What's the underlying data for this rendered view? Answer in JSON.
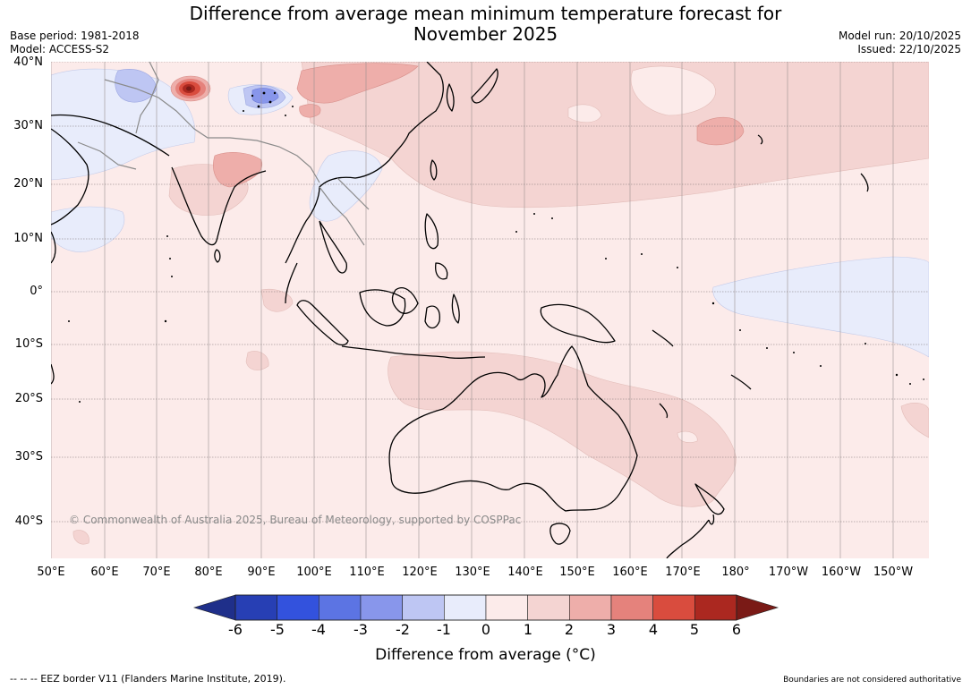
{
  "title_line1": "Difference from average mean minimum temperature forecast for",
  "title_line2": "November 2025",
  "base_period": "Base period: 1981-2018",
  "model": "Model: ACCESS-S2",
  "model_run": "Model run: 20/10/2025",
  "issued": "Issued: 22/10/2025",
  "latitude_labels": [
    "40°N",
    "30°N",
    "20°N",
    "10°N",
    "0°",
    "10°S",
    "20°S",
    "30°S",
    "40°S"
  ],
  "longitude_labels": [
    "50°E",
    "60°E",
    "70°E",
    "80°E",
    "90°E",
    "100°E",
    "110°E",
    "120°E",
    "130°E",
    "140°E",
    "150°E",
    "160°E",
    "170°E",
    "180°",
    "170°W",
    "160°W",
    "150°W"
  ],
  "copyright": "© Commonwealth of Australia 2025, Bureau of Meteorology, supported by COSPPac",
  "colorbar": {
    "ticks": [
      "-6",
      "-5",
      "-4",
      "-3",
      "-2",
      "-1",
      "0",
      "1",
      "2",
      "3",
      "4",
      "5",
      "6"
    ],
    "label": "Difference from average (°C)",
    "colors": [
      "#1f2f8a",
      "#273fb4",
      "#3352dd",
      "#5c74e3",
      "#8896eb",
      "#bec6f3",
      "#e8ecfb",
      "#fcebea",
      "#f4d4d2",
      "#eeaeaa",
      "#e5827c",
      "#d94c3e",
      "#ab2820",
      "#7a1a16"
    ]
  },
  "eez_note": "--  --  -- EEZ border V11 (Flanders Marine Institute, 2019).",
  "boundaries_note": "Boundaries are not considered authoritative"
}
